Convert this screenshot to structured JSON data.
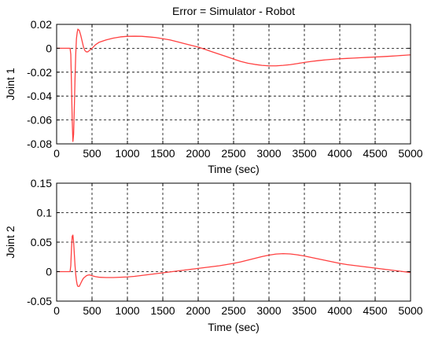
{
  "figure": {
    "title": "Error = Simulator - Robot"
  },
  "chart_data": [
    {
      "type": "line",
      "title": "Error = Simulator - Robot",
      "xlabel": "Time (sec)",
      "ylabel": "Joint 1",
      "xlim": [
        0,
        5000
      ],
      "ylim": [
        -0.08,
        0.02
      ],
      "xticks": [
        0,
        500,
        1000,
        1500,
        2000,
        2500,
        3000,
        3500,
        4000,
        4500,
        5000
      ],
      "yticks": [
        0.02,
        0,
        -0.02,
        -0.04,
        -0.06,
        -0.08
      ],
      "xtick_labels": [
        "0",
        "500",
        "1000",
        "1500",
        "2000",
        "2500",
        "3000",
        "3500",
        "4000",
        "4500",
        "5000"
      ],
      "ytick_labels": [
        "0.02",
        "0",
        "-0.02",
        "-0.04",
        "-0.06",
        "-0.08"
      ],
      "grid": true,
      "line_color": "#ff4040",
      "series": [
        {
          "x": [
            0,
            190,
            200,
            210,
            220,
            230,
            240,
            250,
            260,
            270,
            280,
            290,
            300,
            320,
            340,
            360,
            380,
            400,
            420,
            440,
            460,
            480,
            500,
            550,
            600,
            700,
            800,
            900,
            1000,
            1100,
            1200,
            1300,
            1400,
            1500,
            1600,
            1700,
            1800,
            1900,
            2000,
            2100,
            2200,
            2300,
            2400,
            2500,
            2600,
            2700,
            2800,
            2900,
            3000,
            3100,
            3200,
            3300,
            3400,
            3500,
            3600,
            3700,
            3800,
            3900,
            4000,
            4100,
            4200,
            4300,
            4400,
            4500,
            4600,
            4700,
            4800,
            4900,
            5000
          ],
          "y": [
            0,
            0,
            -0.005,
            -0.03,
            -0.06,
            -0.078,
            -0.072,
            -0.05,
            -0.025,
            -0.005,
            0.008,
            0.013,
            0.016,
            0.015,
            0.011,
            0.006,
            0.001,
            -0.002,
            -0.003,
            -0.003,
            -0.002,
            -0.001,
            0.0,
            0.003,
            0.005,
            0.007,
            0.0085,
            0.0095,
            0.01,
            0.0101,
            0.01,
            0.0095,
            0.009,
            0.008,
            0.007,
            0.0055,
            0.004,
            0.0025,
            0.001,
            -0.001,
            -0.003,
            -0.005,
            -0.007,
            -0.009,
            -0.011,
            -0.0125,
            -0.0135,
            -0.0143,
            -0.0147,
            -0.0147,
            -0.0143,
            -0.0137,
            -0.0128,
            -0.0118,
            -0.011,
            -0.0103,
            -0.0097,
            -0.0092,
            -0.0088,
            -0.0085,
            -0.0082,
            -0.0079,
            -0.0076,
            -0.0073,
            -0.007,
            -0.0067,
            -0.0063,
            -0.0059,
            -0.0055
          ]
        }
      ]
    },
    {
      "type": "line",
      "title": "",
      "xlabel": "Time (sec)",
      "ylabel": "Joint 2",
      "xlim": [
        0,
        5000
      ],
      "ylim": [
        -0.05,
        0.15
      ],
      "xticks": [
        0,
        500,
        1000,
        1500,
        2000,
        2500,
        3000,
        3500,
        4000,
        4500,
        5000
      ],
      "yticks": [
        0.15,
        0.1,
        0.05,
        0,
        -0.05
      ],
      "xtick_labels": [
        "0",
        "500",
        "1000",
        "1500",
        "2000",
        "2500",
        "3000",
        "3500",
        "4000",
        "4500",
        "5000"
      ],
      "ytick_labels": [
        "0.15",
        "0.1",
        "0.05",
        "0",
        "-0.05"
      ],
      "grid": true,
      "line_color": "#ff4040",
      "series": [
        {
          "x": [
            0,
            190,
            200,
            210,
            220,
            230,
            240,
            250,
            260,
            270,
            280,
            290,
            300,
            320,
            340,
            360,
            380,
            400,
            420,
            440,
            460,
            480,
            500,
            550,
            600,
            700,
            800,
            900,
            1000,
            1100,
            1200,
            1300,
            1400,
            1500,
            1600,
            1700,
            1800,
            1900,
            2000,
            2100,
            2200,
            2300,
            2400,
            2500,
            2600,
            2700,
            2800,
            2900,
            3000,
            3100,
            3200,
            3300,
            3400,
            3500,
            3600,
            3700,
            3800,
            3900,
            4000,
            4100,
            4200,
            4300,
            4400,
            4500,
            4600,
            4700,
            4800,
            4900,
            5000
          ],
          "y": [
            0,
            0,
            0.01,
            0.04,
            0.06,
            0.062,
            0.05,
            0.03,
            0.01,
            -0.005,
            -0.015,
            -0.022,
            -0.025,
            -0.025,
            -0.02,
            -0.015,
            -0.011,
            -0.009,
            -0.007,
            -0.006,
            -0.0055,
            -0.006,
            -0.007,
            -0.0085,
            -0.0095,
            -0.01,
            -0.01,
            -0.0095,
            -0.009,
            -0.008,
            -0.0065,
            -0.005,
            -0.0035,
            -0.002,
            -0.0005,
            0.001,
            0.0025,
            0.004,
            0.0055,
            0.007,
            0.0085,
            0.01,
            0.012,
            0.014,
            0.0165,
            0.0195,
            0.0225,
            0.0255,
            0.028,
            0.0298,
            0.0305,
            0.03,
            0.0285,
            0.0265,
            0.024,
            0.0215,
            0.019,
            0.0165,
            0.014,
            0.012,
            0.0105,
            0.009,
            0.0075,
            0.006,
            0.0045,
            0.003,
            0.0015,
            0.0,
            -0.0015
          ]
        }
      ]
    }
  ]
}
